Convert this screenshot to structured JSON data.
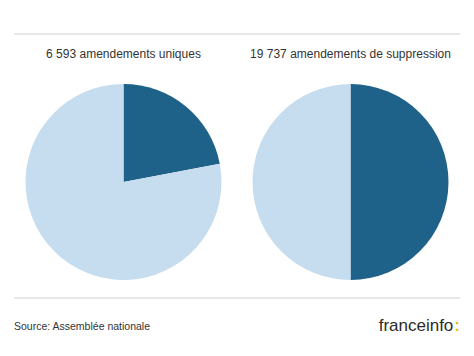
{
  "chart_data": [
    {
      "type": "pie",
      "title": "6 593 amendements uniques",
      "values": [
        0.22,
        0.78
      ],
      "colors": [
        "#1e6189",
        "#c5ddef"
      ]
    },
    {
      "type": "pie",
      "title": "19 737 amendements de suppression",
      "values": [
        0.5,
        0.5
      ],
      "colors": [
        "#1e6189",
        "#c5ddef"
      ]
    }
  ],
  "annotations": [
    {
      "text": "Source: Assemblée nationale",
      "color": "#333333"
    },
    {
      "text": "franceinfo",
      "color": "#2b2b2b"
    },
    {
      "text": ":",
      "color": "#f0c000"
    }
  ]
}
